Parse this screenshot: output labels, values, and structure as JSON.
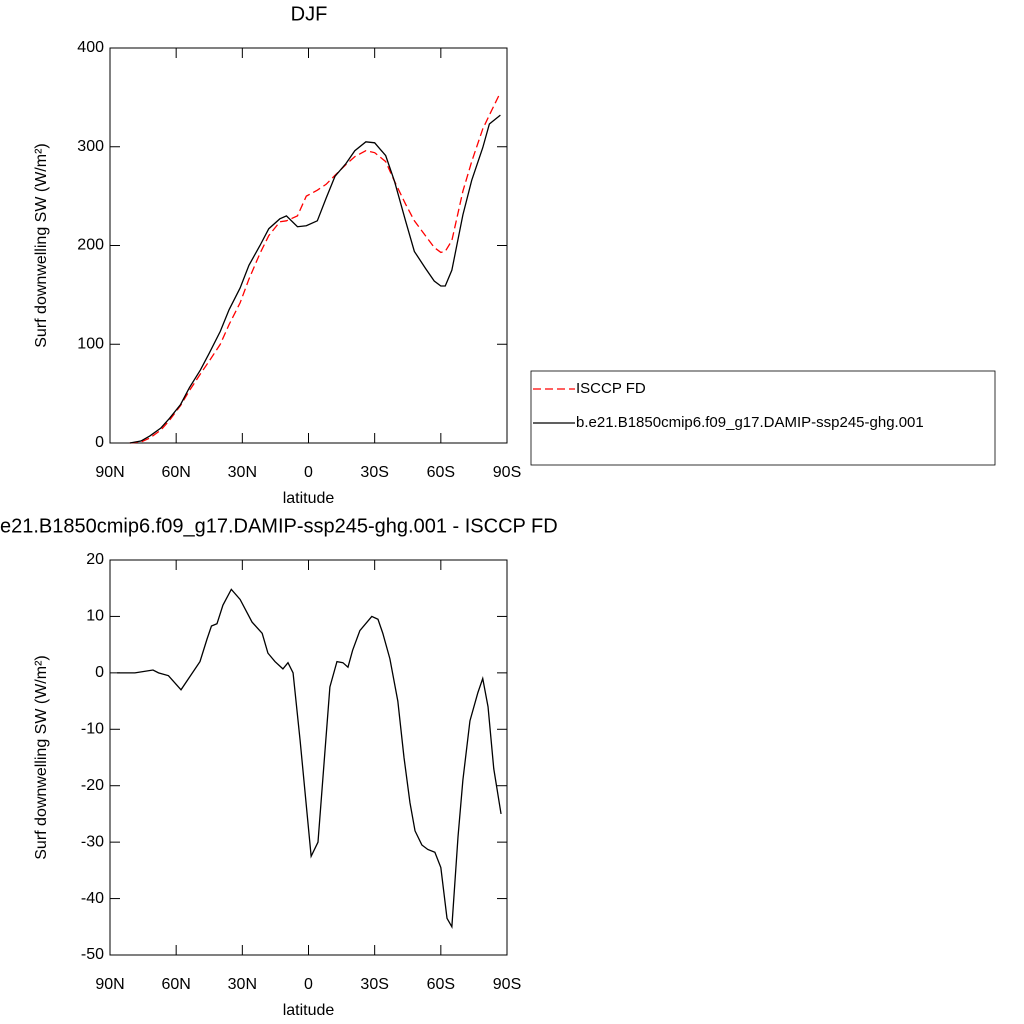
{
  "chart_data": [
    {
      "type": "line",
      "title": "DJF",
      "x_label": "latitude",
      "y_label": "Surf downwelling SW (W/m²)",
      "xlim": [
        90,
        -90
      ],
      "xticks": [
        {
          "value": 90,
          "label": "90N"
        },
        {
          "value": 60,
          "label": "60N"
        },
        {
          "value": 30,
          "label": "30N"
        },
        0,
        {
          "value": -30,
          "label": "30S"
        },
        {
          "value": -60,
          "label": "60S"
        },
        {
          "value": -90,
          "label": "90S"
        }
      ],
      "ylim": [
        0,
        400
      ],
      "yticks": [
        0,
        100,
        200,
        300,
        400
      ],
      "legend": "right",
      "x": [
        81,
        76,
        72,
        67,
        63,
        58,
        54,
        49,
        45,
        40,
        36,
        31,
        27,
        22,
        18,
        13,
        10,
        5,
        1,
        -4,
        -8,
        -12,
        -17,
        -21,
        -26,
        -30,
        -35,
        -39,
        -44,
        -48,
        -53,
        -57,
        -60,
        -62,
        -65,
        -70,
        -74,
        -79,
        -82,
        -87
      ],
      "series": [
        {
          "name": "ISCCP FD",
          "color": "#ff0000",
          "line_style": "dashed",
          "values": [
            0,
            1,
            5,
            13,
            23,
            38,
            53,
            70,
            83,
            100,
            120,
            142,
            166,
            192,
            210,
            224,
            225,
            230,
            250,
            256,
            262,
            271,
            282,
            290,
            296,
            294,
            285,
            265,
            242,
            225,
            210,
            198,
            193,
            194,
            205,
            255,
            285,
            318,
            332,
            355
          ]
        },
        {
          "name": "b.e21.B1850cmip6.f09_g17.DAMIP-ssp245-ghg.001",
          "color": "#000000",
          "line_style": "solid",
          "values": [
            0,
            2,
            7,
            15,
            25,
            39,
            56,
            74,
            91,
            113,
            135,
            157,
            180,
            200,
            217,
            227,
            230,
            219,
            220,
            225,
            248,
            270,
            283,
            296,
            305,
            304,
            291,
            265,
            225,
            194,
            177,
            164,
            159,
            159,
            175,
            231,
            266,
            299,
            323,
            332
          ]
        }
      ]
    },
    {
      "type": "line",
      "title": "e21.B1850cmip6.f09_g17.DAMIP-ssp245-ghg.001 - ISCCP FD",
      "x_label": "latitude",
      "y_label": "Surf downwelling SW (W/m²)",
      "xlim": [
        90,
        -90
      ],
      "xticks": [
        {
          "value": 90,
          "label": "90N"
        },
        {
          "value": 60,
          "label": "60N"
        },
        {
          "value": 30,
          "label": "30N"
        },
        0,
        {
          "value": -30,
          "label": "30S"
        },
        {
          "value": -60,
          "label": "60S"
        },
        {
          "value": -90,
          "label": "90S"
        }
      ],
      "ylim": [
        -50,
        20
      ],
      "yticks": [
        -50,
        -40,
        -30,
        -20,
        -10,
        0,
        10,
        20
      ],
      "x": [
        86.8,
        78.7,
        70.5,
        68,
        63.5,
        57.8,
        49.2,
        46,
        44,
        41.5,
        38.8,
        35,
        31,
        25.6,
        21,
        18.4,
        15.2,
        11.6,
        9.3,
        7,
        3.8,
        -1.2,
        -4.3,
        -9.7,
        -12.9,
        -15.6,
        -17.9,
        -20,
        -23.3,
        -28.7,
        -31.5,
        -33.7,
        -36.9,
        -40.5,
        -43.3,
        -46,
        -48.3,
        -51.4,
        -54.1,
        -57.3,
        -60,
        -62.8,
        -65,
        -67.8,
        -70,
        -73.2,
        -76.8,
        -79,
        -81.4,
        -84,
        -87.3
      ],
      "series": [
        {
          "color": "#000000",
          "line_style": "solid",
          "values": [
            0,
            0,
            0.5,
            0,
            -0.5,
            -3,
            2,
            6,
            8.3,
            8.7,
            12,
            14.8,
            13,
            9,
            7,
            3.5,
            2,
            0.7,
            1.8,
            0,
            -12,
            -32.5,
            -30,
            -2.5,
            2,
            1.8,
            1,
            4,
            7.5,
            10,
            9.5,
            7,
            2.5,
            -5,
            -15,
            -23,
            -28,
            -30.5,
            -31.3,
            -31.8,
            -34.5,
            -43.5,
            -45,
            -29,
            -19,
            -8.5,
            -3.5,
            -1,
            -6,
            -17,
            -25
          ]
        }
      ]
    }
  ]
}
